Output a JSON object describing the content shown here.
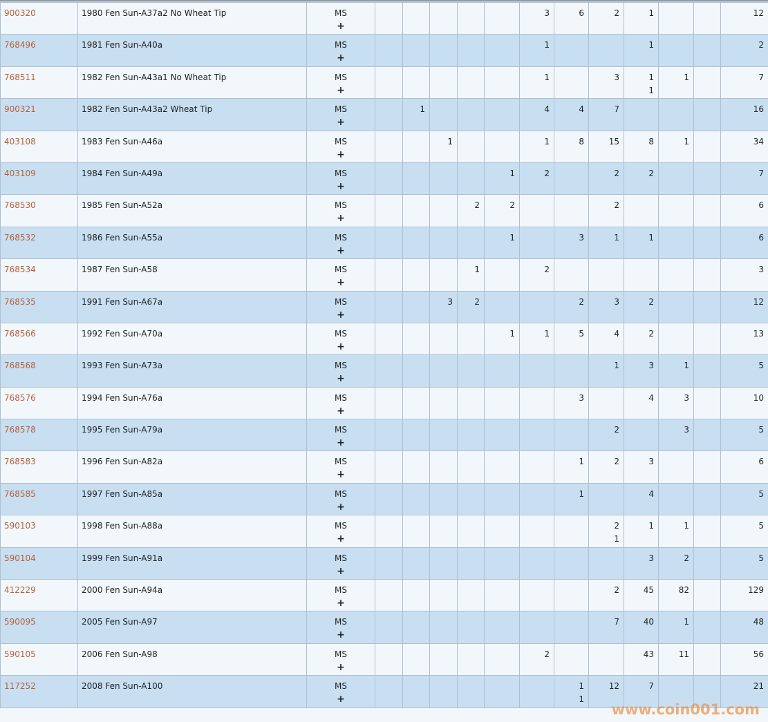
{
  "grade_label": "MS",
  "add_label": "+",
  "rows": [
    {
      "id": "900320",
      "name": "1980 Fen Sun-A37a2 No Wheat Tip",
      "cells": [
        "",
        "",
        "",
        "",
        "",
        "3",
        "6",
        "2",
        "1",
        "",
        ""
      ],
      "total": "12"
    },
    {
      "id": "768496",
      "name": "1981 Fen Sun-A40a",
      "cells": [
        "",
        "",
        "",
        "",
        "",
        "1",
        "",
        "",
        "1",
        "",
        ""
      ],
      "total": "2"
    },
    {
      "id": "768511",
      "name": "1982 Fen Sun-A43a1 No Wheat Tip",
      "cells": [
        "",
        "",
        "",
        "",
        "",
        "1",
        "",
        "3",
        [
          "1",
          "1"
        ],
        "1",
        ""
      ],
      "total": "7"
    },
    {
      "id": "900321",
      "name": "1982 Fen Sun-A43a2 Wheat Tip",
      "cells": [
        "",
        "1",
        "",
        "",
        "",
        "4",
        "4",
        "7",
        "",
        "",
        ""
      ],
      "total": "16"
    },
    {
      "id": "403108",
      "name": "1983 Fen Sun-A46a",
      "cells": [
        "",
        "",
        "1",
        "",
        "",
        "1",
        "8",
        "15",
        "8",
        "1",
        ""
      ],
      "total": "34"
    },
    {
      "id": "403109",
      "name": "1984 Fen Sun-A49a",
      "cells": [
        "",
        "",
        "",
        "",
        "1",
        "2",
        "",
        "2",
        "2",
        "",
        ""
      ],
      "total": "7"
    },
    {
      "id": "768530",
      "name": "1985 Fen Sun-A52a",
      "cells": [
        "",
        "",
        "",
        "2",
        "2",
        "",
        "",
        "2",
        "",
        "",
        ""
      ],
      "total": "6"
    },
    {
      "id": "768532",
      "name": "1986 Fen Sun-A55a",
      "cells": [
        "",
        "",
        "",
        "",
        "1",
        "",
        "3",
        "1",
        "1",
        "",
        ""
      ],
      "total": "6"
    },
    {
      "id": "768534",
      "name": "1987 Fen Sun-A58",
      "cells": [
        "",
        "",
        "",
        "1",
        "",
        "2",
        "",
        "",
        "",
        "",
        ""
      ],
      "total": "3"
    },
    {
      "id": "768535",
      "name": "1991 Fen Sun-A67a",
      "cells": [
        "",
        "",
        "3",
        "2",
        "",
        "",
        "2",
        "3",
        "2",
        "",
        ""
      ],
      "total": "12"
    },
    {
      "id": "768566",
      "name": "1992 Fen Sun-A70a",
      "cells": [
        "",
        "",
        "",
        "",
        "1",
        "1",
        "5",
        "4",
        "2",
        "",
        ""
      ],
      "total": "13"
    },
    {
      "id": "768568",
      "name": "1993 Fen Sun-A73a",
      "cells": [
        "",
        "",
        "",
        "",
        "",
        "",
        "",
        "1",
        "3",
        "1",
        ""
      ],
      "total": "5"
    },
    {
      "id": "768576",
      "name": "1994 Fen Sun-A76a",
      "cells": [
        "",
        "",
        "",
        "",
        "",
        "",
        "3",
        "",
        "4",
        "3",
        ""
      ],
      "total": "10"
    },
    {
      "id": "768578",
      "name": "1995 Fen Sun-A79a",
      "cells": [
        "",
        "",
        "",
        "",
        "",
        "",
        "",
        "2",
        "",
        "3",
        ""
      ],
      "total": "5"
    },
    {
      "id": "768583",
      "name": "1996 Fen Sun-A82a",
      "cells": [
        "",
        "",
        "",
        "",
        "",
        "",
        "1",
        "2",
        "3",
        "",
        ""
      ],
      "total": "6"
    },
    {
      "id": "768585",
      "name": "1997 Fen Sun-A85a",
      "cells": [
        "",
        "",
        "",
        "",
        "",
        "",
        "1",
        "",
        "4",
        "",
        ""
      ],
      "total": "5"
    },
    {
      "id": "590103",
      "name": "1998 Fen Sun-A88a",
      "cells": [
        "",
        "",
        "",
        "",
        "",
        "",
        "",
        [
          "2",
          "1"
        ],
        "1",
        "1",
        ""
      ],
      "total": "5"
    },
    {
      "id": "590104",
      "name": "1999 Fen Sun-A91a",
      "cells": [
        "",
        "",
        "",
        "",
        "",
        "",
        "",
        "",
        "3",
        "2",
        ""
      ],
      "total": "5"
    },
    {
      "id": "412229",
      "name": "2000 Fen Sun-A94a",
      "cells": [
        "",
        "",
        "",
        "",
        "",
        "",
        "",
        "2",
        "45",
        "82",
        ""
      ],
      "total": "129"
    },
    {
      "id": "590095",
      "name": "2005 Fen Sun-A97",
      "cells": [
        "",
        "",
        "",
        "",
        "",
        "",
        "",
        "7",
        "40",
        "1",
        ""
      ],
      "total": "48"
    },
    {
      "id": "590105",
      "name": "2006 Fen Sun-A98",
      "cells": [
        "",
        "",
        "",
        "",
        "",
        "2",
        "",
        "",
        "43",
        "11",
        ""
      ],
      "total": "56"
    },
    {
      "id": "117252",
      "name": "2008 Fen Sun-A100",
      "cells": [
        "",
        "",
        "",
        "",
        "",
        "",
        [
          "1",
          "1"
        ],
        "12",
        "7",
        "",
        ""
      ],
      "total": "21"
    }
  ],
  "watermark": "www.coin001.com",
  "colors": {
    "id_link": "#b5603a",
    "row_odd": "#f2f7fb",
    "row_even": "#c8dff2",
    "border": "#aebfcf",
    "watermark": "#e89650"
  }
}
